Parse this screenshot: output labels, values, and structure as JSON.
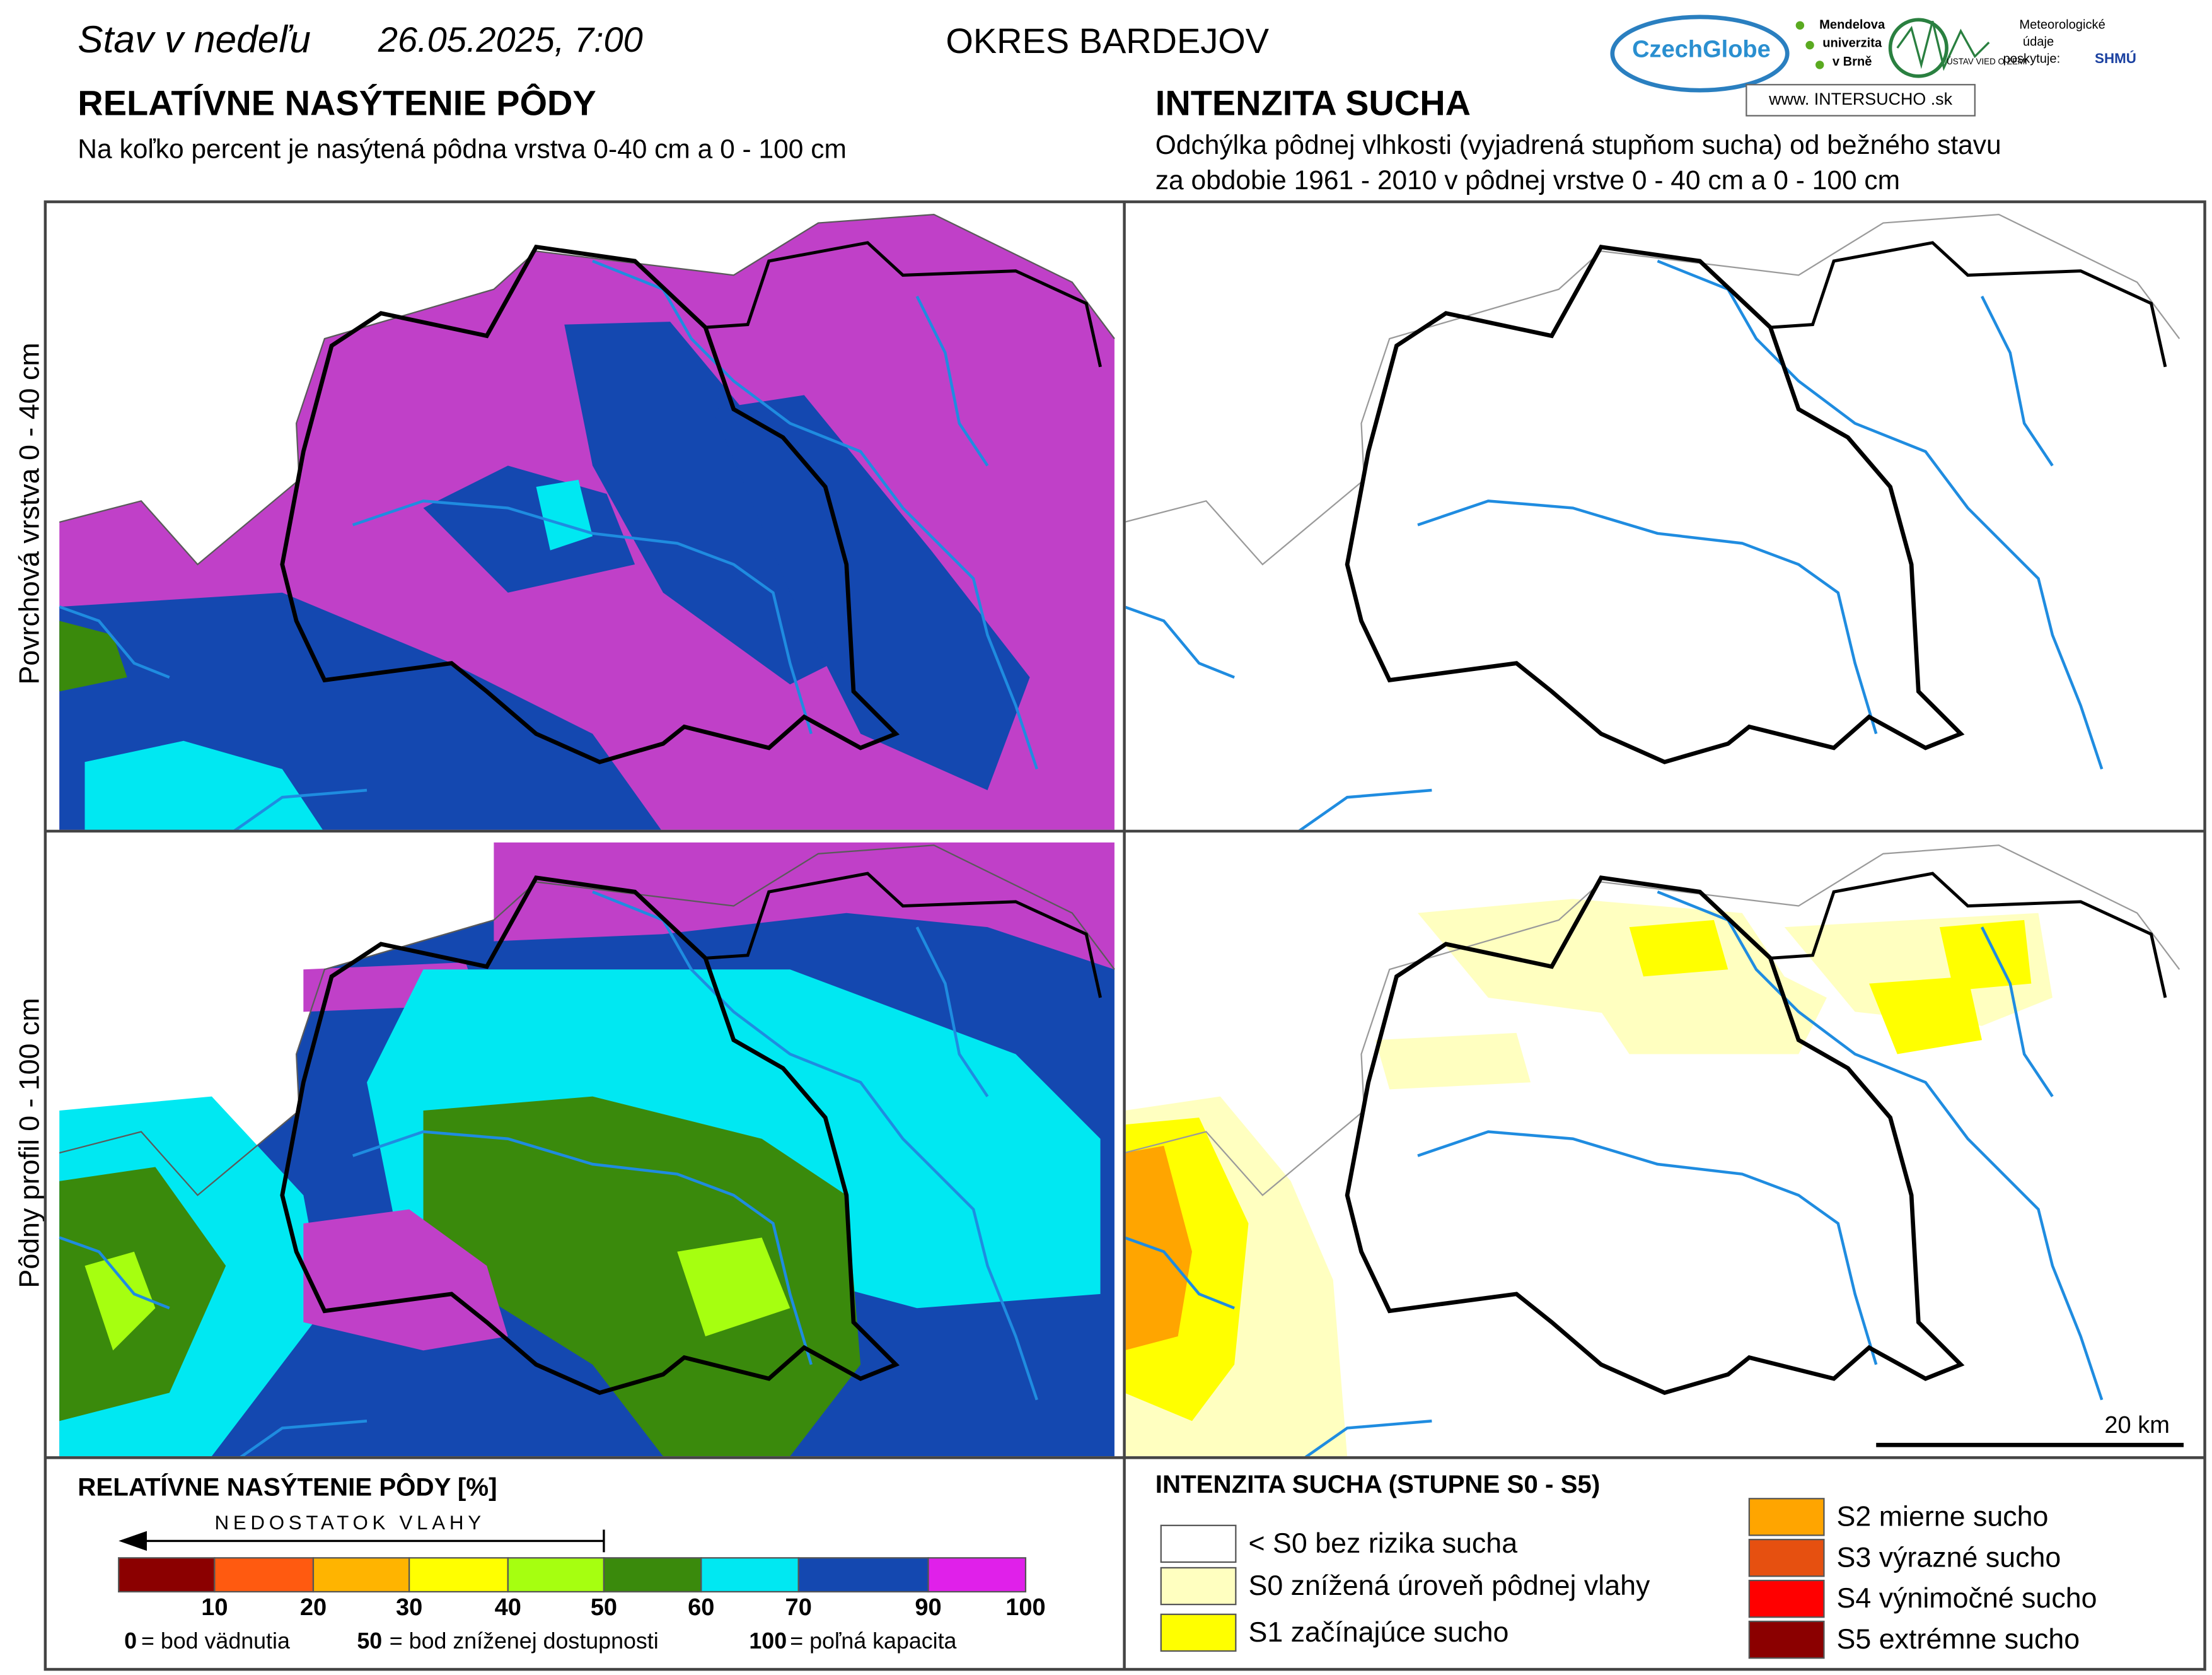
{
  "header": {
    "date_prefix": "Stav v nedeľu",
    "date": "26.05.2025, 7:00",
    "district": "OKRES  BARDEJOV"
  },
  "logos": {
    "czechglobe": "CzechGlobe",
    "mendelu": [
      "Mendelova",
      "univerzita",
      "v Brně"
    ],
    "ustav": "ÚSTAV VIED O ZEMI",
    "meteo": [
      "Meteorologické",
      "údaje",
      "poskytuje:"
    ],
    "shmu": "SHMÚ",
    "intersucho": "www. INTERSUCHO .sk"
  },
  "left": {
    "title": "RELATÍVNE NASÝTENIE PÔDY",
    "subtitle": "Na koľko percent je nasýtená pôdna vrstva 0-40 cm a 0 - 100 cm"
  },
  "right": {
    "title": "INTENZITA SUCHA",
    "subtitle": [
      "Odchýlka pôdnej vlhkosti (vyjadrená stupňom sucha) od bežného stavu",
      "za obdobie 1961 - 2010 v pôdnej vrstve 0 - 40 cm a 0 - 100 cm"
    ]
  },
  "row_labels": [
    "Povrchová vrstva 0 - 40 cm",
    "Pôdny profil 0 - 100 cm"
  ],
  "scale_bar": "20 km",
  "legend_left": {
    "title": "RELATÍVNE NASÝTENIE PÔDY [%]",
    "arrow_label": "NEDOSTATOK VLAHY",
    "colors": [
      "#8b0000",
      "#ff5a10",
      "#ffb400",
      "#ffff00",
      "#a6ff10",
      "#3a8a0c",
      "#00e8f2",
      "#1448b0",
      "#e020ea"
    ],
    "ticks": [
      10,
      20,
      30,
      40,
      50,
      60,
      70,
      90,
      100
    ],
    "notes": [
      {
        "key": "0",
        "text": "= bod vädnutia"
      },
      {
        "key": "50",
        "text": "= bod zníženej dostupnosti"
      },
      {
        "key": "100",
        "text": "= poľná kapacita"
      }
    ]
  },
  "legend_right": {
    "title": "INTENZITA SUCHA (STUPNE S0 - S5)",
    "items": [
      {
        "color": "#ffffff",
        "label": "< S0 bez rizika sucha"
      },
      {
        "color": "#ffffc0",
        "label": "S0 znížená úroveň pôdnej vlahy"
      },
      {
        "color": "#ffff00",
        "label": "S1 začínajúce sucho"
      },
      {
        "color": "#ffa500",
        "label": "S2 mierne sucho"
      },
      {
        "color": "#e65010",
        "label": "S3 výrazné sucho"
      },
      {
        "color": "#ff0000",
        "label": "S4 výnimočné sucho"
      },
      {
        "color": "#8b0000",
        "label": "S5 extrémne sucho"
      }
    ]
  }
}
